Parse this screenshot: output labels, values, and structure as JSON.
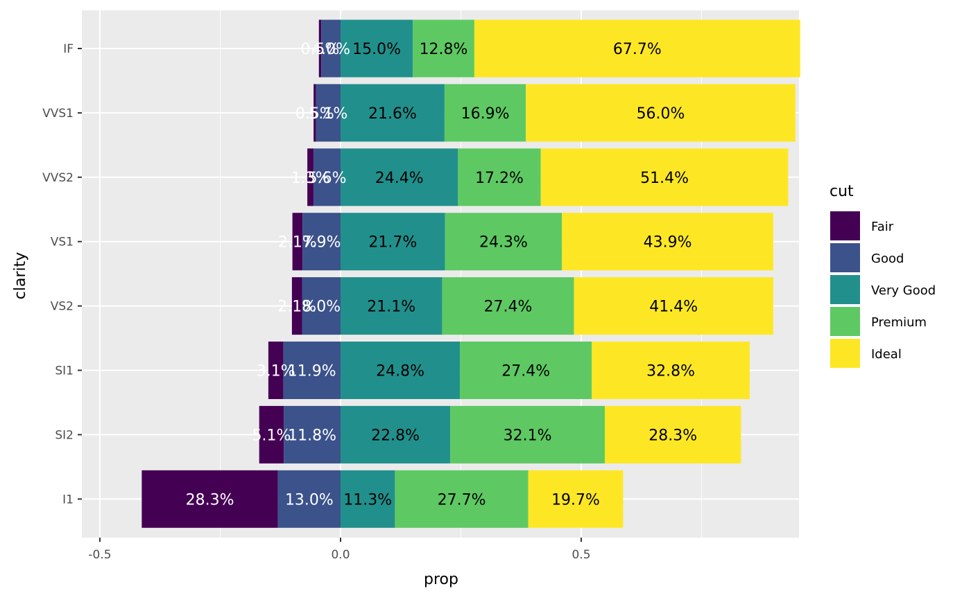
{
  "chart_data": {
    "type": "bar",
    "orientation": "horizontal-stacked-diverging",
    "xlabel": "prop",
    "ylabel": "clarity",
    "xlim": [
      -0.52,
      0.95
    ],
    "xticks": [
      -0.5,
      0.0,
      0.5
    ],
    "xtick_labels": [
      "-0.5",
      "0.0",
      "0.5"
    ],
    "grid": true,
    "legend_title": "cut",
    "legend_position": "right",
    "categories": [
      "IF",
      "VVS1",
      "VVS2",
      "VS1",
      "VS2",
      "SI1",
      "SI2",
      "I1"
    ],
    "series": [
      {
        "name": "Fair",
        "color": "#440154",
        "text_color": "#ffffff",
        "values": [
          0.005,
          0.005,
          0.013,
          0.021,
          0.021,
          0.031,
          0.051,
          0.283
        ],
        "labels": [
          "0.5%",
          "0.5%",
          "1.3%",
          "2.1%",
          "2.1%",
          "3.1%",
          "5.1%",
          "28.3%"
        ]
      },
      {
        "name": "Good",
        "color": "#3b528b",
        "text_color": "#ffffff",
        "values": [
          0.04,
          0.051,
          0.056,
          0.079,
          0.08,
          0.119,
          0.118,
          0.13
        ],
        "labels": [
          "4.0%",
          "5.1%",
          "5.6%",
          "7.9%",
          "8.0%",
          "11.9%",
          "11.8%",
          "13.0%"
        ]
      },
      {
        "name": "Very Good",
        "color": "#21908c",
        "text_color": "#000000",
        "values": [
          0.15,
          0.216,
          0.244,
          0.217,
          0.211,
          0.248,
          0.228,
          0.113
        ],
        "labels": [
          "15.0%",
          "21.6%",
          "24.4%",
          "21.7%",
          "21.1%",
          "24.8%",
          "22.8%",
          "11.3%"
        ]
      },
      {
        "name": "Premium",
        "color": "#5ec962",
        "text_color": "#000000",
        "values": [
          0.128,
          0.169,
          0.172,
          0.243,
          0.274,
          0.274,
          0.321,
          0.277
        ],
        "labels": [
          "12.8%",
          "16.9%",
          "17.2%",
          "24.3%",
          "27.4%",
          "27.4%",
          "32.1%",
          "27.7%"
        ]
      },
      {
        "name": "Ideal",
        "color": "#fde725",
        "text_color": "#000000",
        "values": [
          0.677,
          0.56,
          0.514,
          0.439,
          0.414,
          0.328,
          0.283,
          0.197
        ],
        "labels": [
          "67.7%",
          "56.0%",
          "51.4%",
          "43.9%",
          "41.4%",
          "32.8%",
          "28.3%",
          "19.7%"
        ]
      }
    ],
    "colors": {
      "panel_background": "#ebebeb",
      "grid_major": "#ffffff",
      "grid_minor": "#f5f5f5",
      "tick_text": "#4d4d4d"
    }
  }
}
